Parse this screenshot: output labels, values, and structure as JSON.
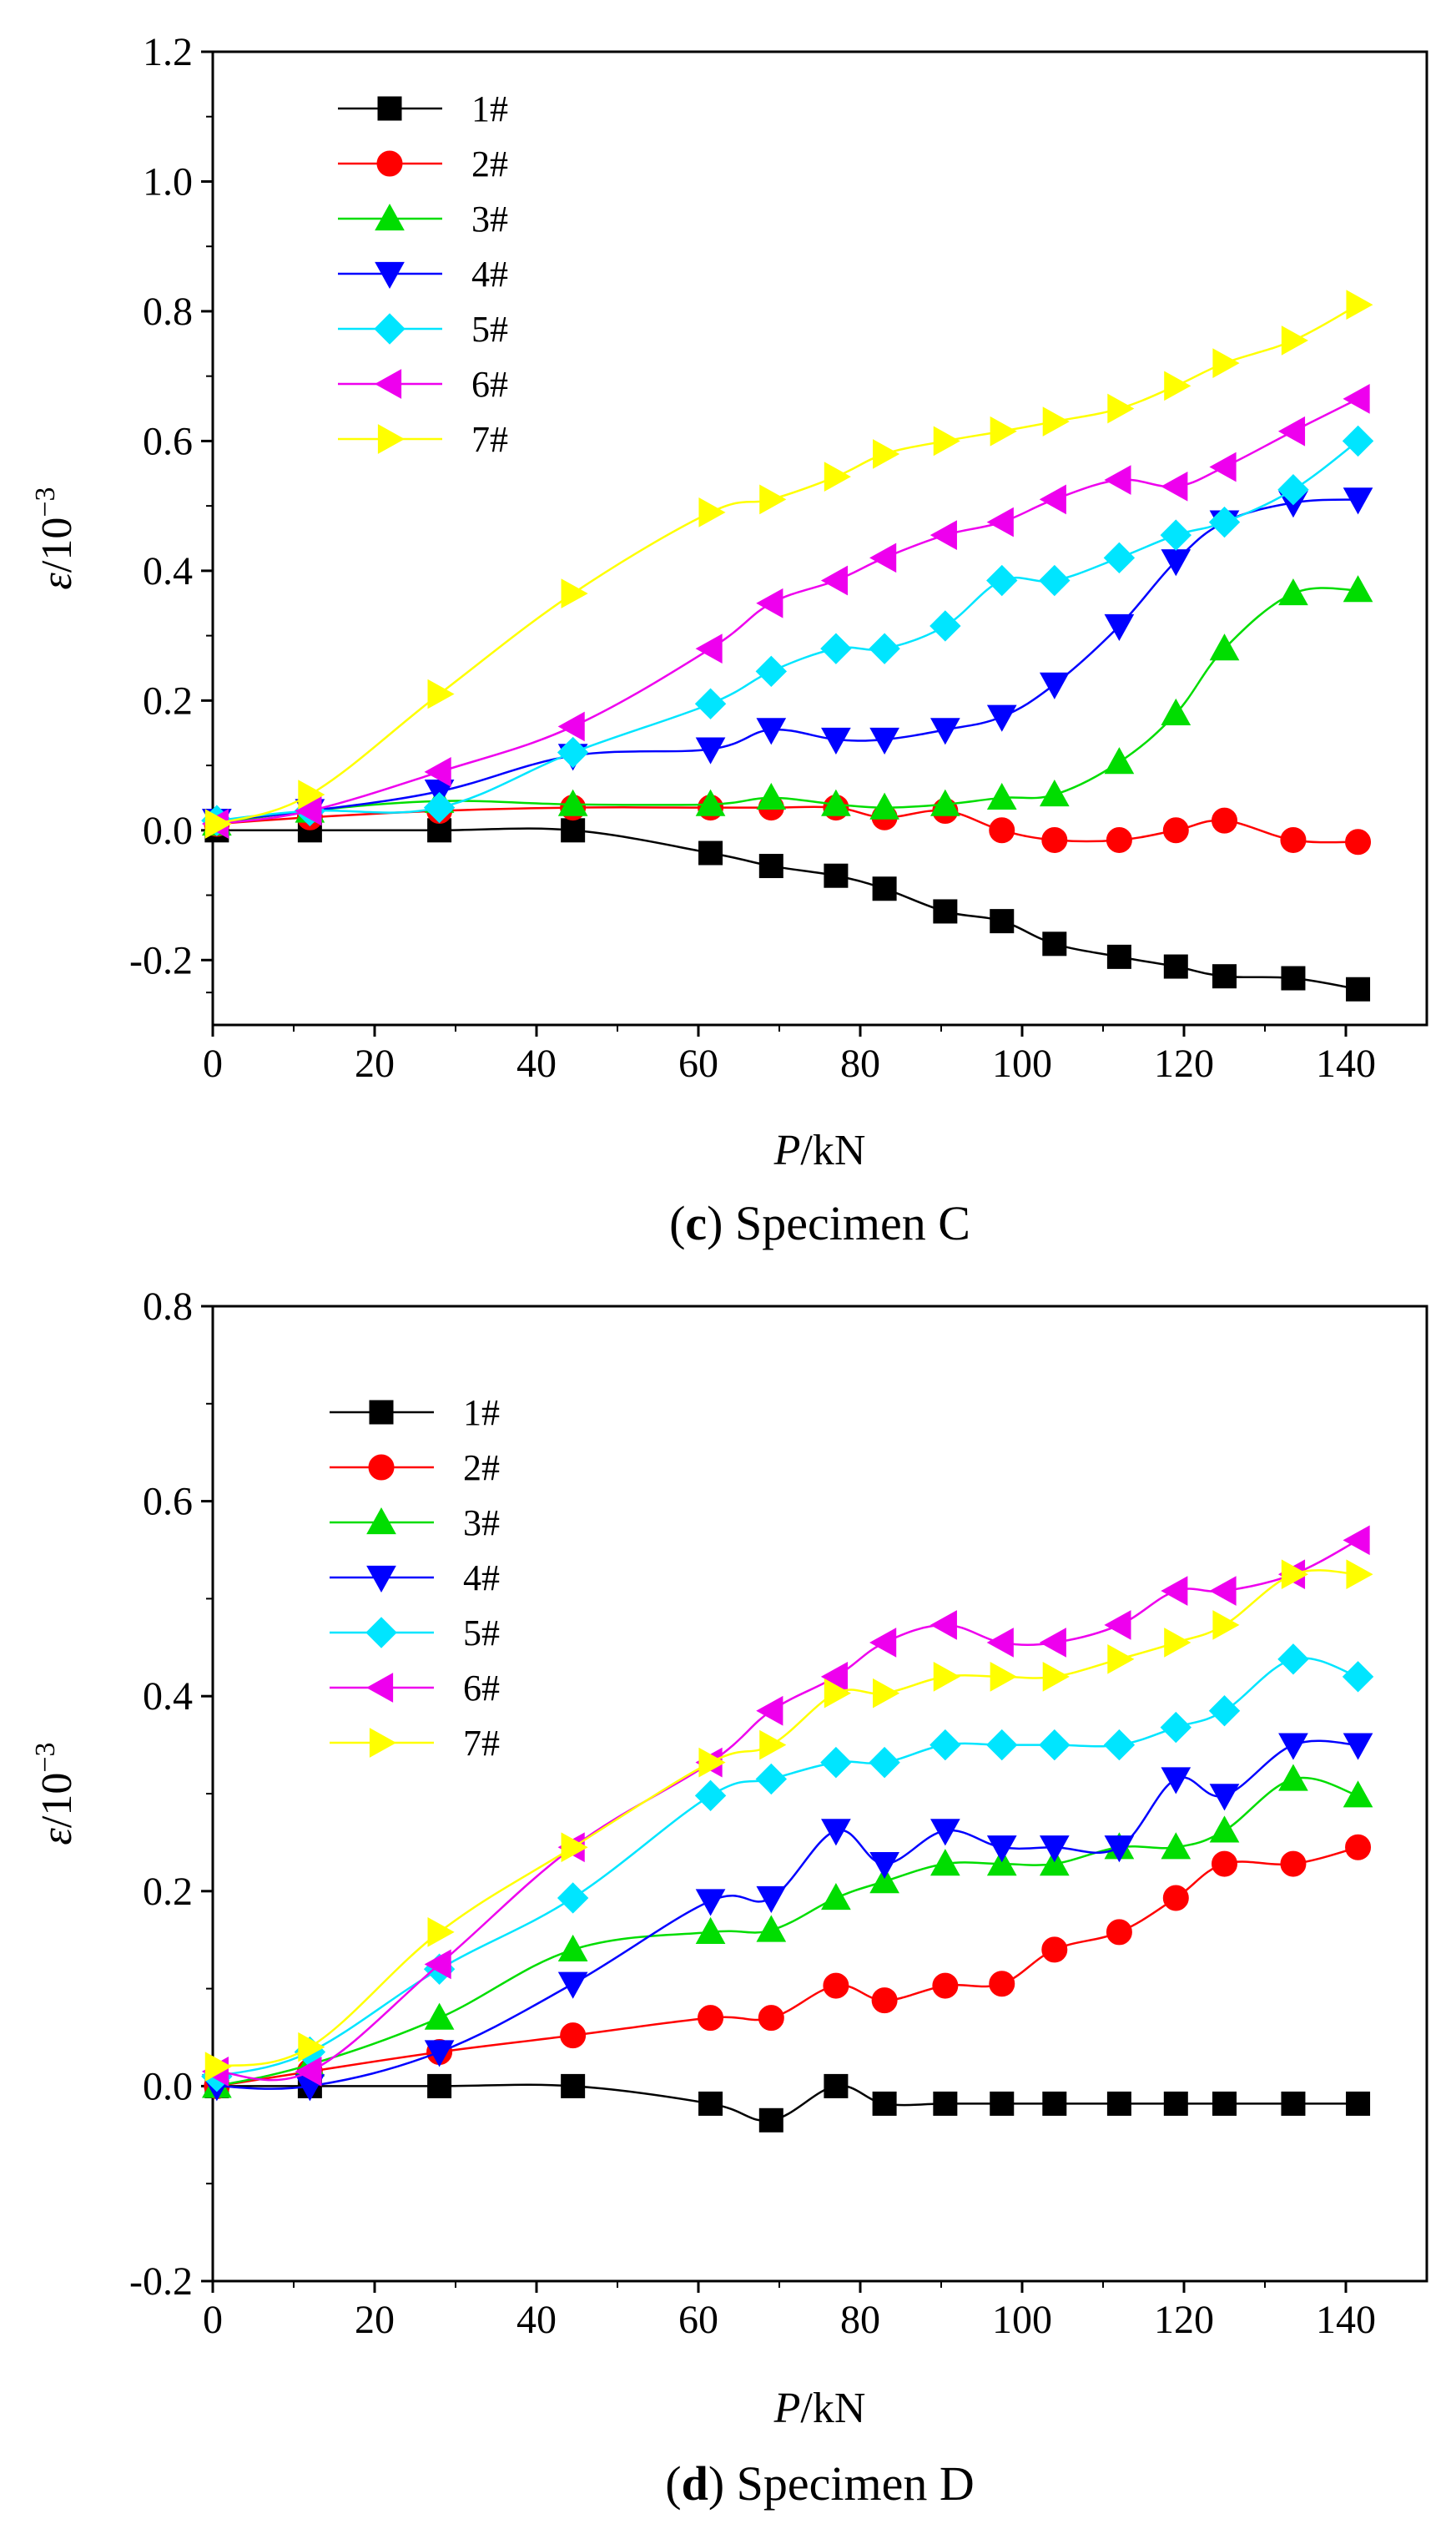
{
  "chart_data": [
    {
      "type": "line",
      "caption_letter": "c",
      "caption_text": "Specimen C",
      "xlabel_italic": "P",
      "xlabel_unit": "/kN",
      "ylabel_symbol": "ε",
      "ylabel_unit": "/10",
      "ylabel_exp": "−3",
      "xlim": [
        0,
        150
      ],
      "ylim": [
        -0.3,
        1.2
      ],
      "xticks": [
        0,
        20,
        40,
        60,
        80,
        100,
        120,
        140
      ],
      "yticks": [
        -0.2,
        0.0,
        0.2,
        0.4,
        0.6,
        0.8,
        1.0,
        1.2
      ],
      "ytick_labels": [
        "-0.2",
        "0.0",
        "0.2",
        "0.4",
        "0.6",
        "0.8",
        "1.0",
        "1.2"
      ],
      "grid": false,
      "legend_position": "top-left",
      "x": [
        0.5,
        12,
        28,
        44.5,
        61.5,
        69,
        77,
        83,
        90.5,
        97.5,
        104,
        112,
        119,
        125,
        133.5,
        141.5
      ],
      "series": [
        {
          "name": "1#",
          "color": "#000000",
          "marker": "square",
          "values": [
            0.0,
            0.0,
            0.0,
            0.0,
            -0.035,
            -0.055,
            -0.07,
            -0.09,
            -0.125,
            -0.14,
            -0.175,
            -0.195,
            -0.21,
            -0.225,
            -0.228,
            -0.245
          ]
        },
        {
          "name": "2#",
          "color": "#ff0000",
          "marker": "circle",
          "values": [
            0.01,
            0.02,
            0.03,
            0.035,
            0.035,
            0.035,
            0.035,
            0.02,
            0.03,
            0.0,
            -0.015,
            -0.015,
            0.0,
            0.015,
            -0.015,
            -0.018
          ]
        },
        {
          "name": "3#",
          "color": "#00dd00",
          "marker": "triangle-up",
          "values": [
            0.01,
            0.03,
            0.045,
            0.04,
            0.04,
            0.05,
            0.04,
            0.035,
            0.04,
            0.05,
            0.055,
            0.105,
            0.18,
            0.28,
            0.365,
            0.37
          ]
        },
        {
          "name": "4#",
          "color": "#0000ff",
          "marker": "triangle-down",
          "values": [
            0.015,
            0.03,
            0.06,
            0.115,
            0.125,
            0.155,
            0.14,
            0.14,
            0.155,
            0.175,
            0.225,
            0.315,
            0.415,
            0.475,
            0.505,
            0.51
          ]
        },
        {
          "name": "5#",
          "color": "#00e5ff",
          "marker": "diamond",
          "values": [
            0.015,
            0.03,
            0.035,
            0.12,
            0.195,
            0.245,
            0.28,
            0.28,
            0.315,
            0.385,
            0.385,
            0.42,
            0.455,
            0.475,
            0.525,
            0.6
          ]
        },
        {
          "name": "6#",
          "color": "#ee00ee",
          "marker": "triangle-left",
          "values": [
            0.01,
            0.03,
            0.09,
            0.16,
            0.28,
            0.35,
            0.385,
            0.42,
            0.455,
            0.475,
            0.51,
            0.54,
            0.53,
            0.56,
            0.615,
            0.665
          ]
        },
        {
          "name": "7#",
          "color": "#ffff00",
          "marker": "triangle-right",
          "values": [
            0.01,
            0.055,
            0.21,
            0.365,
            0.49,
            0.51,
            0.545,
            0.58,
            0.6,
            0.615,
            0.63,
            0.65,
            0.685,
            0.72,
            0.755,
            0.81
          ]
        }
      ]
    },
    {
      "type": "line",
      "caption_letter": "d",
      "caption_text": "Specimen D",
      "xlabel_italic": "P",
      "xlabel_unit": "/kN",
      "ylabel_symbol": "ε",
      "ylabel_unit": "/10",
      "ylabel_exp": "−3",
      "xlim": [
        0,
        150
      ],
      "ylim": [
        -0.2,
        0.8
      ],
      "xticks": [
        0,
        20,
        40,
        60,
        80,
        100,
        120,
        140
      ],
      "yticks": [
        -0.2,
        0.0,
        0.2,
        0.4,
        0.6,
        0.8
      ],
      "ytick_labels": [
        "-0.2",
        "0.0",
        "0.2",
        "0.4",
        "0.6",
        "0.8"
      ],
      "grid": false,
      "legend_position": "top-left",
      "x": [
        0.5,
        12,
        28,
        44.5,
        61.5,
        69,
        77,
        83,
        90.5,
        97.5,
        104,
        112,
        119,
        125,
        133.5,
        141.5
      ],
      "series": [
        {
          "name": "1#",
          "color": "#000000",
          "marker": "square",
          "values": [
            0.0,
            0.0,
            0.0,
            0.0,
            -0.018,
            -0.035,
            0.0,
            -0.018,
            -0.018,
            -0.018,
            -0.018,
            -0.018,
            -0.018,
            -0.018,
            -0.018,
            -0.018
          ]
        },
        {
          "name": "2#",
          "color": "#ff0000",
          "marker": "circle",
          "values": [
            0.0,
            0.015,
            0.035,
            0.052,
            0.07,
            0.07,
            0.103,
            0.088,
            0.103,
            0.105,
            0.14,
            0.158,
            0.193,
            0.228,
            0.228,
            0.245
          ]
        },
        {
          "name": "3#",
          "color": "#00dd00",
          "marker": "triangle-up",
          "values": [
            0.0,
            0.022,
            0.07,
            0.14,
            0.158,
            0.16,
            0.193,
            0.21,
            0.228,
            0.228,
            0.228,
            0.245,
            0.245,
            0.262,
            0.315,
            0.298
          ]
        },
        {
          "name": "4#",
          "color": "#0000ff",
          "marker": "triangle-down",
          "values": [
            0.0,
            0.0,
            0.035,
            0.105,
            0.19,
            0.193,
            0.262,
            0.228,
            0.262,
            0.245,
            0.245,
            0.245,
            0.315,
            0.298,
            0.35,
            0.35
          ]
        },
        {
          "name": "5#",
          "color": "#00e5ff",
          "marker": "diamond",
          "values": [
            0.01,
            0.035,
            0.12,
            0.193,
            0.298,
            0.315,
            0.332,
            0.332,
            0.35,
            0.35,
            0.35,
            0.35,
            0.368,
            0.385,
            0.438,
            0.42
          ]
        },
        {
          "name": "6#",
          "color": "#ee00ee",
          "marker": "triangle-left",
          "values": [
            0.015,
            0.015,
            0.125,
            0.245,
            0.332,
            0.385,
            0.42,
            0.455,
            0.473,
            0.455,
            0.455,
            0.473,
            0.508,
            0.508,
            0.525,
            0.56
          ]
        },
        {
          "name": "7#",
          "color": "#ffff00",
          "marker": "triangle-right",
          "values": [
            0.02,
            0.04,
            0.158,
            0.245,
            0.332,
            0.35,
            0.403,
            0.403,
            0.42,
            0.42,
            0.42,
            0.438,
            0.455,
            0.473,
            0.525,
            0.525
          ]
        }
      ]
    }
  ]
}
